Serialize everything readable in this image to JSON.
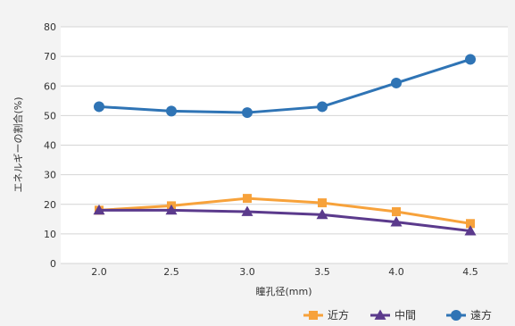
{
  "chart_data": {
    "type": "line",
    "title": "",
    "xlabel": "瞳孔径(mm)",
    "ylabel": "エネルギーの割合(%)",
    "categories": [
      "2.0",
      "2.5",
      "3.0",
      "3.5",
      "4.0",
      "4.5"
    ],
    "ylim": [
      0,
      80
    ],
    "yticks": [
      "0",
      "10",
      "20",
      "30",
      "40",
      "50",
      "60",
      "70",
      "80"
    ],
    "grid": true,
    "legend_position": "bottom-right",
    "series": [
      {
        "name": "近方",
        "color": "#f7a23b",
        "marker": "square",
        "values": [
          18,
          19.5,
          22,
          20.5,
          17.5,
          13.5
        ]
      },
      {
        "name": "中間",
        "color": "#5b3a8c",
        "marker": "triangle",
        "values": [
          18,
          18,
          17.5,
          16.5,
          14,
          11
        ]
      },
      {
        "name": "遠方",
        "color": "#2f74b5",
        "marker": "circle",
        "values": [
          53,
          51.5,
          51,
          53,
          61,
          69
        ]
      }
    ]
  }
}
